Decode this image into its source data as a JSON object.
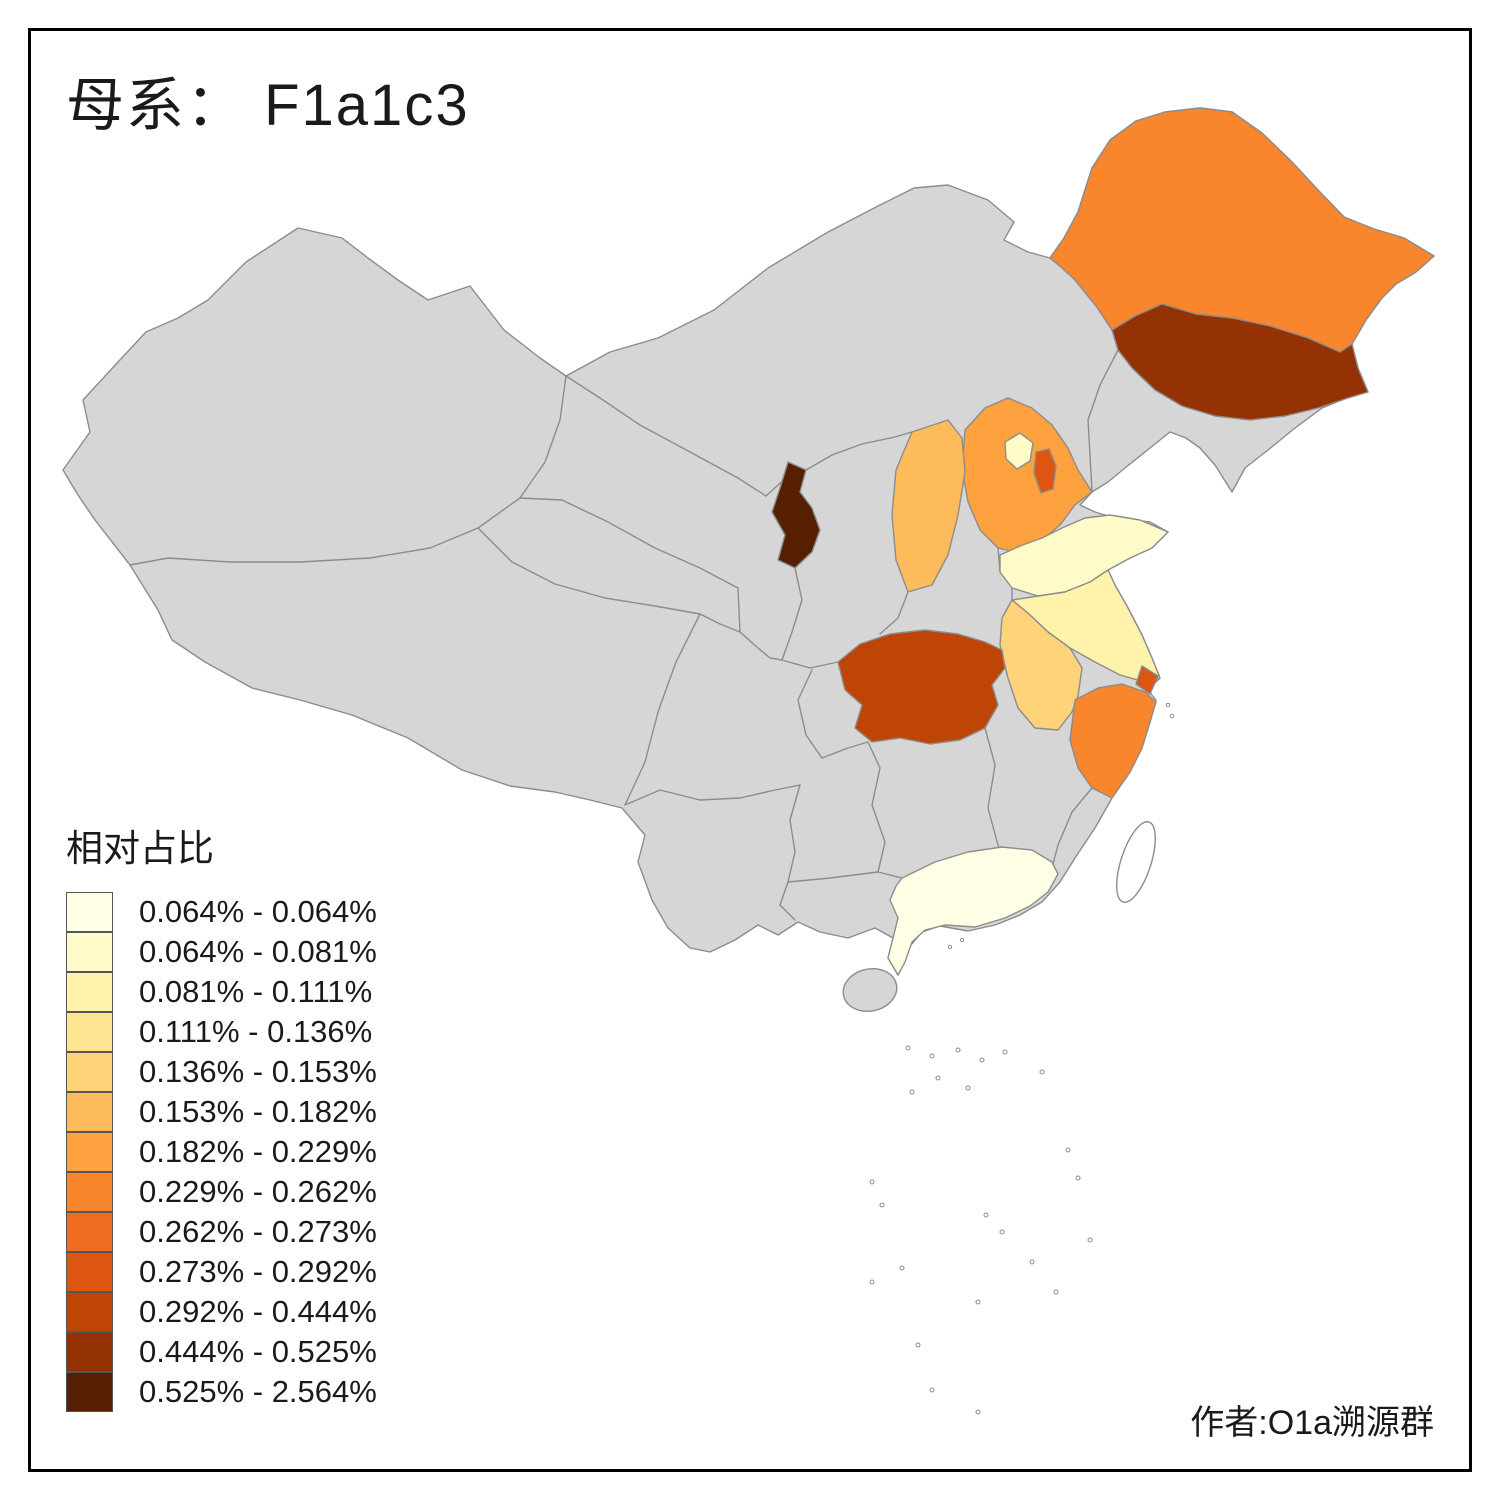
{
  "title": "母系：  F1a1c3",
  "legend": {
    "title": "相对占比",
    "classes": [
      {
        "label": "0.064% - 0.064%",
        "color": "#ffffe5"
      },
      {
        "label": "0.064% - 0.081%",
        "color": "#fffbc8"
      },
      {
        "label": "0.081% - 0.111%",
        "color": "#fff2ab"
      },
      {
        "label": "0.111% - 0.136%",
        "color": "#fee591"
      },
      {
        "label": "0.136% - 0.153%",
        "color": "#fed37a"
      },
      {
        "label": "0.153% - 0.182%",
        "color": "#febb5b"
      },
      {
        "label": "0.182% - 0.229%",
        "color": "#fea13f"
      },
      {
        "label": "0.229% - 0.262%",
        "color": "#f9852d"
      },
      {
        "label": "0.262% - 0.273%",
        "color": "#ee6d20"
      },
      {
        "label": "0.273% - 0.292%",
        "color": "#dd5511"
      },
      {
        "label": "0.292% - 0.444%",
        "color": "#bf4507"
      },
      {
        "label": "0.444% - 0.525%",
        "color": "#953203"
      },
      {
        "label": "0.525% - 2.564%",
        "color": "#571f02"
      }
    ]
  },
  "attribution": "作者:O1a溯源群",
  "map": {
    "no_data_color": "#d6d6d6",
    "border_color": "#8c8c8c",
    "background_color": "#ffffff",
    "provinces": [
      {
        "id": "heilongjiang",
        "class": 8
      },
      {
        "id": "jilin",
        "class": 12
      },
      {
        "id": "hebei",
        "class": 7
      },
      {
        "id": "shanxi",
        "class": 6
      },
      {
        "id": "beijing",
        "class": 2
      },
      {
        "id": "tianjin",
        "class": 10
      },
      {
        "id": "ningxia",
        "class": 13
      },
      {
        "id": "shandong",
        "class": 2
      },
      {
        "id": "jiangsu",
        "class": 3
      },
      {
        "id": "anhui",
        "class": 5
      },
      {
        "id": "hubei",
        "class": 11
      },
      {
        "id": "zhejiang",
        "class": 8
      },
      {
        "id": "shanghai",
        "class": 10
      },
      {
        "id": "guangdong",
        "class": 1
      }
    ]
  },
  "chart_data": {
    "type": "choropleth",
    "title": "母系：  F1a1c3",
    "legend_title": "相对占比",
    "bins": [
      "0.064% - 0.064%",
      "0.064% - 0.081%",
      "0.081% - 0.111%",
      "0.111% - 0.136%",
      "0.136% - 0.153%",
      "0.153% - 0.182%",
      "0.182% - 0.229%",
      "0.229% - 0.262%",
      "0.262% - 0.273%",
      "0.273% - 0.292%",
      "0.292% - 0.444%",
      "0.444% - 0.525%",
      "0.525% - 2.564%"
    ],
    "regions": [
      {
        "region": "heilongjiang",
        "bin": "0.229% - 0.262%"
      },
      {
        "region": "jilin",
        "bin": "0.444% - 0.525%"
      },
      {
        "region": "hebei",
        "bin": "0.182% - 0.229%"
      },
      {
        "region": "shanxi",
        "bin": "0.153% - 0.182%"
      },
      {
        "region": "beijing",
        "bin": "0.064% - 0.081%"
      },
      {
        "region": "tianjin",
        "bin": "0.273% - 0.292%"
      },
      {
        "region": "ningxia",
        "bin": "0.525% - 2.564%"
      },
      {
        "region": "shandong",
        "bin": "0.064% - 0.081%"
      },
      {
        "region": "jiangsu",
        "bin": "0.081% - 0.111%"
      },
      {
        "region": "anhui",
        "bin": "0.136% - 0.153%"
      },
      {
        "region": "hubei",
        "bin": "0.292% - 0.444%"
      },
      {
        "region": "zhejiang",
        "bin": "0.229% - 0.262%"
      },
      {
        "region": "shanghai",
        "bin": "0.273% - 0.292%"
      },
      {
        "region": "guangdong",
        "bin": "0.064% - 0.064%"
      },
      {
        "region": "other_provinces",
        "bin": "no data"
      }
    ],
    "legend_position": "bottom-left",
    "annotations": [
      "作者:O1a溯源群"
    ]
  }
}
